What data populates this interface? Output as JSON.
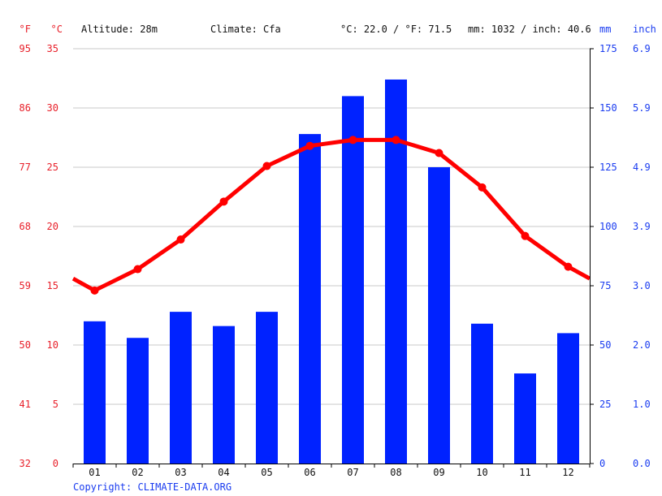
{
  "header": {
    "unit_f": "°F",
    "unit_c": "°C",
    "altitude": "Altitude: 28m",
    "climate": "Climate: Cfa",
    "temp_avg": "°C: 22.0 / °F: 71.5",
    "precip_total": "mm: 1032 / inch: 40.6",
    "unit_mm": "mm",
    "unit_inch": "inch"
  },
  "copyright": "Copyright: CLIMATE-DATA.ORG",
  "colors": {
    "temperature": "#ff0000",
    "precipitation": "#0022ff",
    "fahrenheit_labels": "#e8202a",
    "inch_labels": "#1a3cf0",
    "gridline": "#c8c8c8"
  },
  "chart_data": {
    "type": "bar",
    "categories": [
      "01",
      "02",
      "03",
      "04",
      "05",
      "06",
      "07",
      "08",
      "09",
      "10",
      "11",
      "12"
    ],
    "series": [
      {
        "type": "bar",
        "axis": "right",
        "unit": "mm",
        "values": [
          60,
          53,
          64,
          58,
          64,
          139,
          155,
          162,
          125,
          59,
          38,
          55
        ]
      },
      {
        "type": "line",
        "axis": "left",
        "unit": "°C",
        "values": [
          14.6,
          16.4,
          18.9,
          22.1,
          25.1,
          26.8,
          27.3,
          27.3,
          26.2,
          23.3,
          19.2,
          16.6
        ]
      }
    ],
    "line_edge_values": {
      "before_jan": 15.6,
      "after_dec": 15.6
    },
    "left_axis": {
      "celsius_ticks": [
        "35",
        "30",
        "25",
        "20",
        "15",
        "10",
        "5",
        "0"
      ],
      "fahrenheit_ticks": [
        "95",
        "86",
        "77",
        "68",
        "59",
        "50",
        "41",
        "32"
      ],
      "ylim": [
        0,
        35
      ]
    },
    "right_axis": {
      "mm_ticks": [
        "175",
        "150",
        "125",
        "100",
        "75",
        "50",
        "25",
        "0"
      ],
      "inch_ticks": [
        "6.9",
        "5.9",
        "4.9",
        "3.9",
        "3.0",
        "2.0",
        "1.0",
        "0.0"
      ],
      "ylim": [
        0,
        175
      ]
    },
    "grid": true
  }
}
